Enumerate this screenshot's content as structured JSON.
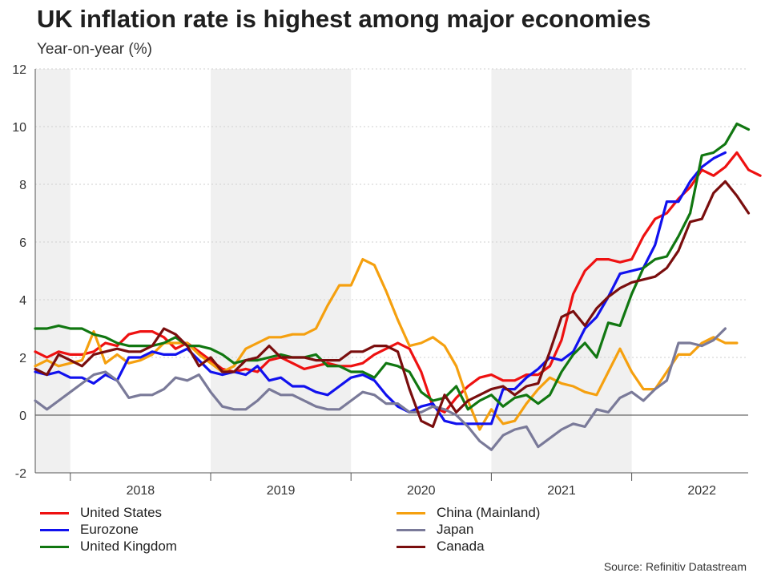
{
  "header": {
    "title": "UK inflation rate is highest among major economies",
    "subtitle": "Year-on-year (%)"
  },
  "source": "Source: Refinitiv Datastream",
  "chart_data": {
    "type": "line",
    "title": "UK inflation rate is highest among major economies",
    "ylabel": "Year-on-year (%)",
    "xlabel": "",
    "ylim": [
      -2,
      12
    ],
    "yticks": [
      -2,
      0,
      2,
      4,
      6,
      8,
      10,
      12
    ],
    "xlim": [
      2017.25,
      2022.33
    ],
    "year_labels": [
      {
        "label": "2018",
        "center": 2018.0
      },
      {
        "label": "2019",
        "center": 2019.0
      },
      {
        "label": "2020",
        "center": 2020.0
      },
      {
        "label": "2021",
        "center": 2021.0
      },
      {
        "label": "2022",
        "center": 2022.0
      }
    ],
    "shaded_bands": [
      [
        2017.25,
        2017.5
      ],
      [
        2018.5,
        2019.5
      ],
      [
        2020.5,
        2021.5
      ]
    ],
    "x_start": 2017.25,
    "x_step": 0.08333,
    "grid": true,
    "legend_position": "bottom",
    "series": [
      {
        "name": "United States",
        "color": "#ee1111",
        "values": [
          2.2,
          2.0,
          2.2,
          2.1,
          2.1,
          2.2,
          2.5,
          2.4,
          2.8,
          2.9,
          2.9,
          2.7,
          2.3,
          2.5,
          2.2,
          1.9,
          1.6,
          1.5,
          1.6,
          1.5,
          1.9,
          2.0,
          1.8,
          1.6,
          1.7,
          1.8,
          1.7,
          1.7,
          1.8,
          2.1,
          2.3,
          2.5,
          2.3,
          1.5,
          0.3,
          0.1,
          0.6,
          1.0,
          1.3,
          1.4,
          1.2,
          1.2,
          1.4,
          1.4,
          1.7,
          2.6,
          4.2,
          5.0,
          5.4,
          5.4,
          5.3,
          5.4,
          6.2,
          6.8,
          7.0,
          7.5,
          7.9,
          8.5,
          8.3,
          8.6,
          9.1,
          8.5,
          8.3
        ]
      },
      {
        "name": "China (Mainland)",
        "color": "#f5a00f",
        "values": [
          1.7,
          1.9,
          1.7,
          1.8,
          1.9,
          2.9,
          1.8,
          2.1,
          1.8,
          1.9,
          2.1,
          2.5,
          2.5,
          2.5,
          2.1,
          1.8,
          1.5,
          1.7,
          2.3,
          2.5,
          2.7,
          2.7,
          2.8,
          2.8,
          3.0,
          3.8,
          4.5,
          4.5,
          5.4,
          5.2,
          4.3,
          3.3,
          2.4,
          2.5,
          2.7,
          2.4,
          1.7,
          0.5,
          -0.5,
          0.2,
          -0.3,
          -0.2,
          0.4,
          0.9,
          1.3,
          1.1,
          1.0,
          0.8,
          0.7,
          1.5,
          2.3,
          1.5,
          0.9,
          0.9,
          1.5,
          2.1,
          2.1,
          2.5,
          2.7,
          2.5,
          2.5
        ]
      },
      {
        "name": "Eurozone",
        "color": "#1111ee",
        "values": [
          1.5,
          1.4,
          1.5,
          1.3,
          1.3,
          1.1,
          1.4,
          1.2,
          2.0,
          2.0,
          2.2,
          2.1,
          2.1,
          2.3,
          1.9,
          1.5,
          1.4,
          1.5,
          1.4,
          1.7,
          1.2,
          1.3,
          1.0,
          1.0,
          0.8,
          0.7,
          1.0,
          1.3,
          1.4,
          1.2,
          0.7,
          0.3,
          0.1,
          0.3,
          0.4,
          -0.2,
          -0.3,
          -0.3,
          -0.3,
          -0.3,
          0.9,
          0.9,
          1.3,
          1.6,
          2.0,
          1.9,
          2.2,
          3.0,
          3.4,
          4.1,
          4.9,
          5.0,
          5.1,
          5.9,
          7.4,
          7.4,
          8.1,
          8.6,
          8.9,
          9.1
        ]
      },
      {
        "name": "Japan",
        "color": "#7a7a99",
        "values": [
          0.5,
          0.2,
          0.5,
          0.8,
          1.1,
          1.4,
          1.5,
          1.2,
          0.6,
          0.7,
          0.7,
          0.9,
          1.3,
          1.2,
          1.4,
          0.8,
          0.3,
          0.2,
          0.2,
          0.5,
          0.9,
          0.7,
          0.7,
          0.5,
          0.3,
          0.2,
          0.2,
          0.5,
          0.8,
          0.7,
          0.4,
          0.4,
          0.1,
          0.1,
          0.3,
          0.2,
          0.0,
          -0.4,
          -0.9,
          -1.2,
          -0.7,
          -0.5,
          -0.4,
          -1.1,
          -0.8,
          -0.5,
          -0.3,
          -0.4,
          0.2,
          0.1,
          0.6,
          0.8,
          0.5,
          0.9,
          1.2,
          2.5,
          2.5,
          2.4,
          2.6,
          3.0
        ]
      },
      {
        "name": "United Kingdom",
        "color": "#117711",
        "values": [
          3.0,
          3.0,
          3.1,
          3.0,
          3.0,
          2.8,
          2.7,
          2.5,
          2.4,
          2.4,
          2.4,
          2.5,
          2.7,
          2.4,
          2.4,
          2.3,
          2.1,
          1.8,
          1.9,
          1.9,
          2.0,
          2.1,
          2.0,
          2.0,
          2.1,
          1.7,
          1.7,
          1.5,
          1.5,
          1.3,
          1.8,
          1.7,
          1.5,
          0.8,
          0.5,
          0.6,
          1.0,
          0.2,
          0.5,
          0.7,
          0.3,
          0.6,
          0.7,
          0.4,
          0.7,
          1.5,
          2.1,
          2.5,
          2.0,
          3.2,
          3.1,
          4.2,
          5.1,
          5.4,
          5.5,
          6.2,
          7.0,
          9.0,
          9.1,
          9.4,
          10.1,
          9.9
        ]
      },
      {
        "name": "Canada",
        "color": "#7a0e0e",
        "values": [
          1.6,
          1.4,
          2.1,
          1.9,
          1.7,
          2.1,
          2.2,
          2.3,
          2.2,
          2.2,
          2.4,
          3.0,
          2.8,
          2.4,
          1.7,
          2.0,
          1.5,
          1.5,
          1.9,
          2.0,
          2.4,
          2.0,
          2.0,
          2.0,
          1.9,
          1.9,
          1.9,
          2.2,
          2.2,
          2.4,
          2.4,
          2.2,
          0.9,
          -0.2,
          -0.4,
          0.7,
          0.1,
          0.5,
          0.7,
          0.9,
          1.0,
          0.7,
          1.0,
          1.1,
          2.2,
          3.4,
          3.6,
          3.1,
          3.7,
          4.1,
          4.4,
          4.6,
          4.7,
          4.8,
          5.1,
          5.7,
          6.7,
          6.8,
          7.7,
          8.1,
          7.6,
          7.0
        ]
      }
    ]
  }
}
